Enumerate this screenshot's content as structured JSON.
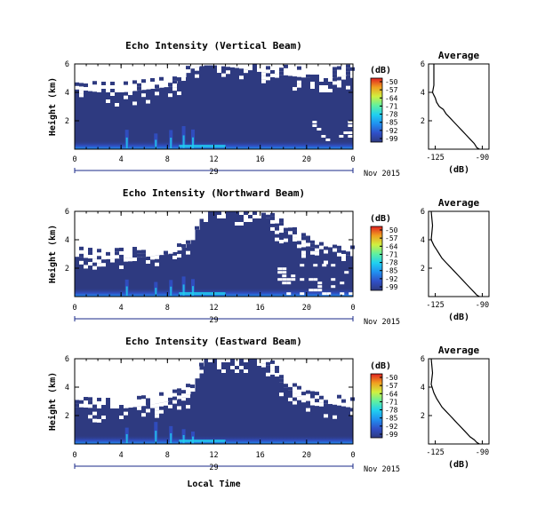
{
  "figure": {
    "xlabel": "Local Time",
    "date_label": "Nov 2015",
    "day_label": "29",
    "colorbar_label": "(dB)",
    "colorbar_ticks": [
      "-50",
      "-57",
      "-64",
      "-71",
      "-78",
      "-85",
      "-92",
      "-99"
    ],
    "avg_title": "Average",
    "avg_xlabel": "(dB)"
  },
  "colors": {
    "background_low": "#2e3a80",
    "colormap": [
      "#2e3a80",
      "#3050c8",
      "#2090f0",
      "#20d0f0",
      "#60f0a0",
      "#d0f040",
      "#f0a020",
      "#e02020"
    ]
  },
  "chart_data": [
    {
      "type": "heatmap",
      "title": "Echo Intensity (Vertical Beam)",
      "ylabel": "Height (km)",
      "xlim": [
        0,
        24
      ],
      "xticks": [
        "0",
        "4",
        "8",
        "12",
        "16",
        "20",
        "0"
      ],
      "ylim": [
        0,
        6
      ],
      "yticks": [
        "2",
        "4",
        "6"
      ],
      "clim": [
        -99,
        -50
      ],
      "white_boundary_km": [
        [
          0,
          4.2
        ],
        [
          2,
          4.0
        ],
        [
          4,
          4.0
        ],
        [
          6,
          4.2
        ],
        [
          8,
          4.4
        ],
        [
          9,
          4.9
        ],
        [
          10,
          5.7
        ],
        [
          11,
          5.9
        ],
        [
          12,
          5.9
        ],
        [
          14,
          5.7
        ],
        [
          16,
          5.4
        ],
        [
          18,
          5.2
        ],
        [
          20,
          5.0
        ],
        [
          22,
          5.0
        ],
        [
          24,
          5.3
        ]
      ],
      "bright_streaks_hours": [
        4.5,
        7.0,
        8.3,
        9.4,
        10.2
      ],
      "gap_region_hours": [
        20.5,
        24
      ],
      "gap_region_height_km": [
        0.5,
        2.0
      ]
    },
    {
      "type": "heatmap",
      "title": "Echo Intensity (Northward Beam)",
      "ylabel": "Height (km)",
      "xlim": [
        0,
        24
      ],
      "xticks": [
        "0",
        "4",
        "8",
        "12",
        "16",
        "20",
        "0"
      ],
      "ylim": [
        0,
        6
      ],
      "yticks": [
        "2",
        "4",
        "6"
      ],
      "clim": [
        -99,
        -50
      ],
      "white_boundary_km": [
        [
          0,
          2.8
        ],
        [
          2,
          2.6
        ],
        [
          4,
          2.7
        ],
        [
          6,
          2.8
        ],
        [
          8,
          3.0
        ],
        [
          9,
          3.3
        ],
        [
          10,
          4.0
        ],
        [
          10.5,
          5.0
        ],
        [
          11,
          6.0
        ],
        [
          16,
          6.0
        ],
        [
          17,
          5.0
        ],
        [
          18,
          4.6
        ],
        [
          19,
          4.0
        ],
        [
          20,
          3.5
        ],
        [
          22,
          3.2
        ],
        [
          24,
          2.8
        ]
      ],
      "bright_streaks_hours": [
        4.5,
        7.0,
        8.3,
        9.4,
        10.2
      ],
      "gap_region_hours": [
        17.5,
        24
      ],
      "gap_region_height_km": [
        0.2,
        2.3
      ]
    },
    {
      "type": "heatmap",
      "title": "Echo Intensity (Eastward Beam)",
      "ylabel": "Height (km)",
      "xlim": [
        0,
        24
      ],
      "xticks": [
        "0",
        "4",
        "8",
        "12",
        "16",
        "20",
        "0"
      ],
      "ylim": [
        0,
        6
      ],
      "yticks": [
        "2",
        "4",
        "6"
      ],
      "clim": [
        -99,
        -50
      ],
      "white_boundary_km": [
        [
          0,
          2.6
        ],
        [
          2,
          2.5
        ],
        [
          4,
          2.5
        ],
        [
          6,
          2.7
        ],
        [
          8,
          3.0
        ],
        [
          9,
          3.2
        ],
        [
          10,
          3.7
        ],
        [
          10.5,
          5.0
        ],
        [
          11,
          6.0
        ],
        [
          16,
          6.0
        ],
        [
          17,
          5.0
        ],
        [
          18,
          4.0
        ],
        [
          19,
          3.4
        ],
        [
          20,
          3.0
        ],
        [
          22,
          2.8
        ],
        [
          24,
          2.5
        ]
      ],
      "bright_streaks_hours": [
        4.5,
        7.0,
        8.3,
        9.4,
        10.2
      ],
      "gap_region_hours": [],
      "gap_region_height_km": []
    },
    {
      "type": "line",
      "title": "Average",
      "xlabel": "(dB)",
      "xticks": [
        "-125",
        "-90"
      ],
      "xlim": [
        -130,
        -85
      ],
      "ylim": [
        0,
        6
      ],
      "yticks": [
        "2",
        "4",
        "6"
      ],
      "x": [
        -126,
        -126,
        -127,
        -126,
        -125,
        -124,
        -122,
        -119,
        -117,
        -114,
        -111,
        -108,
        -105,
        -102,
        -99,
        -96,
        -94,
        -92
      ],
      "y": [
        6.0,
        4.5,
        4.0,
        3.8,
        3.6,
        3.3,
        3.0,
        2.8,
        2.5,
        2.2,
        1.9,
        1.6,
        1.3,
        1.0,
        0.7,
        0.4,
        0.1,
        0.0
      ]
    },
    {
      "type": "line",
      "title": "Average",
      "xlabel": "(dB)",
      "xticks": [
        "-125",
        "-90"
      ],
      "xlim": [
        -130,
        -85
      ],
      "ylim": [
        0,
        6
      ],
      "yticks": [
        "2",
        "4",
        "6"
      ],
      "x": [
        -128,
        -127,
        -128,
        -126,
        -124,
        -122,
        -120,
        -117,
        -114,
        -111,
        -108,
        -105,
        -102,
        -99,
        -96,
        -94,
        -92
      ],
      "y": [
        6.0,
        5.0,
        4.0,
        3.6,
        3.3,
        3.0,
        2.7,
        2.4,
        2.1,
        1.8,
        1.5,
        1.2,
        0.9,
        0.6,
        0.3,
        0.1,
        0.0
      ]
    },
    {
      "type": "line",
      "title": "Average",
      "xlabel": "(dB)",
      "xticks": [
        "-125",
        "-90"
      ],
      "xlim": [
        -130,
        -85
      ],
      "ylim": [
        0,
        6
      ],
      "yticks": [
        "2",
        "4",
        "6"
      ],
      "x": [
        -128,
        -127,
        -128,
        -126,
        -124,
        -122,
        -120,
        -117,
        -114,
        -111,
        -108,
        -105,
        -102,
        -99,
        -96,
        -94,
        -92
      ],
      "y": [
        6.0,
        5.0,
        4.2,
        3.6,
        3.2,
        2.9,
        2.6,
        2.3,
        2.0,
        1.7,
        1.4,
        1.1,
        0.8,
        0.5,
        0.3,
        0.1,
        0.0
      ]
    }
  ]
}
